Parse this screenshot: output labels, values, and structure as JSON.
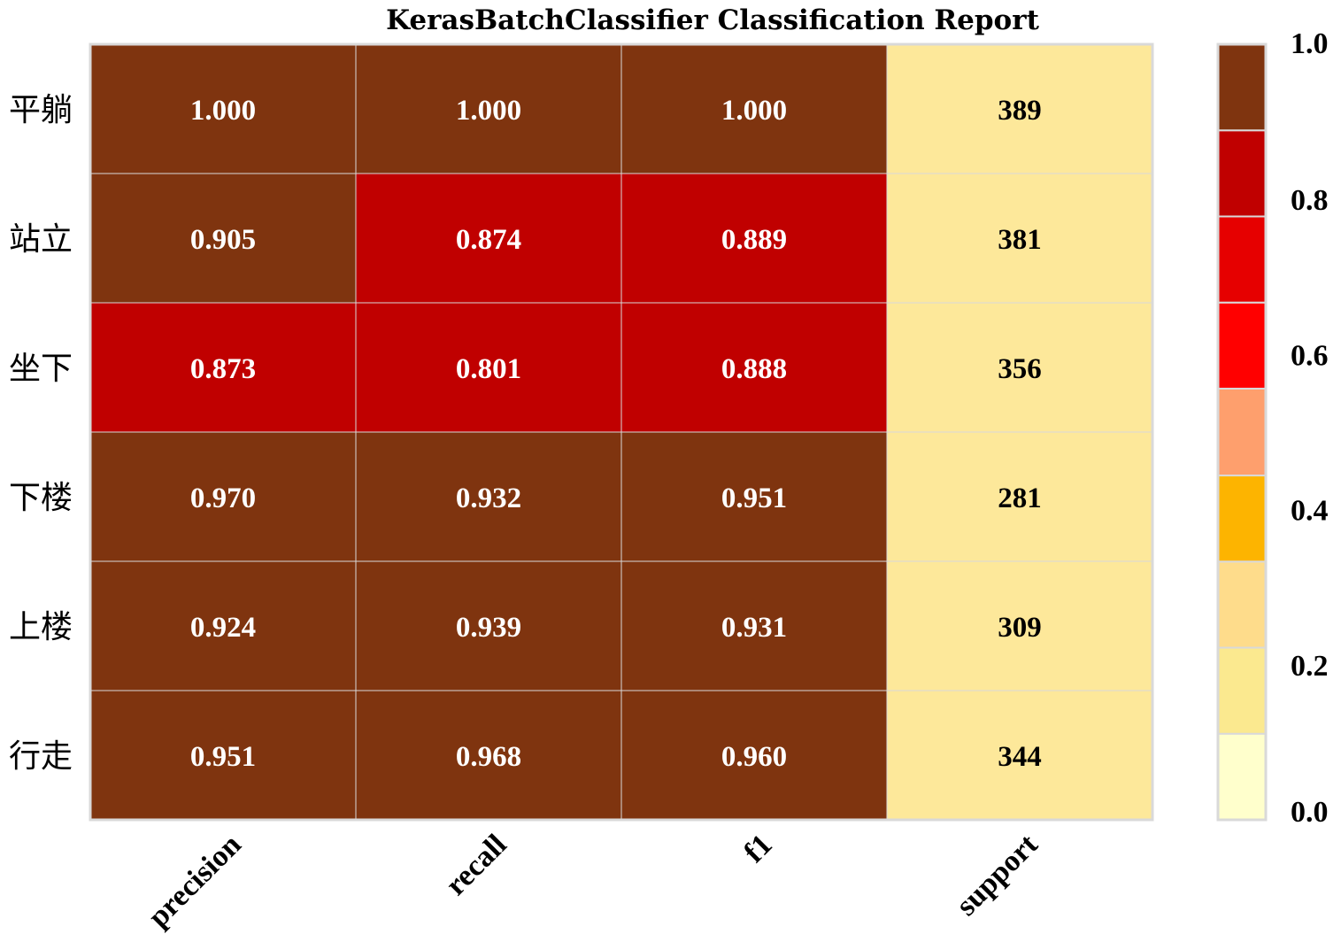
{
  "chart_data": {
    "type": "heatmap",
    "title": "KerasBatchClassifier Classification Report",
    "rows": [
      "平躺",
      "站立",
      "坐下",
      "下楼",
      "上楼",
      "行走"
    ],
    "columns": [
      "precision",
      "recall",
      "f1",
      "support"
    ],
    "values": [
      [
        1.0,
        1.0,
        1.0,
        389
      ],
      [
        0.905,
        0.874,
        0.889,
        381
      ],
      [
        0.873,
        0.801,
        0.888,
        356
      ],
      [
        0.97,
        0.932,
        0.951,
        281
      ],
      [
        0.924,
        0.939,
        0.931,
        309
      ],
      [
        0.951,
        0.968,
        0.96,
        344
      ]
    ],
    "cell_labels": [
      [
        "1.000",
        "1.000",
        "1.000",
        "389"
      ],
      [
        "0.905",
        "0.874",
        "0.889",
        "381"
      ],
      [
        "0.873",
        "0.801",
        "0.888",
        "356"
      ],
      [
        "0.970",
        "0.932",
        "0.951",
        "281"
      ],
      [
        "0.924",
        "0.939",
        "0.931",
        "309"
      ],
      [
        "0.951",
        "0.968",
        "0.960",
        "344"
      ]
    ],
    "support_color_value": 0.2,
    "colorbar": {
      "range": [
        0.0,
        1.0
      ],
      "tick_values": [
        0.0,
        0.2,
        0.4,
        0.6,
        0.8,
        1.0
      ],
      "tick_labels": [
        "0.0",
        "0.2",
        "0.4",
        "0.6",
        "0.8",
        "1.0"
      ],
      "bins": [
        {
          "from": 0.0,
          "to": 0.111,
          "color": "#FFFFCC"
        },
        {
          "from": 0.111,
          "to": 0.222,
          "color": "#FBE98F"
        },
        {
          "from": 0.222,
          "to": 0.333,
          "color": "#FEDC8B"
        },
        {
          "from": 0.333,
          "to": 0.444,
          "color": "#FDB400"
        },
        {
          "from": 0.444,
          "to": 0.556,
          "color": "#FE9F6D"
        },
        {
          "from": 0.556,
          "to": 0.667,
          "color": "#FF0000"
        },
        {
          "from": 0.667,
          "to": 0.778,
          "color": "#E60000"
        },
        {
          "from": 0.778,
          "to": 0.889,
          "color": "#C00000"
        },
        {
          "from": 0.889,
          "to": 1.0,
          "color": "#7F340F"
        }
      ]
    },
    "support_cell_color": "#FDE89A",
    "text_colors": {
      "dark": "#FFFFFF",
      "light": "#000000"
    },
    "grid_color": "#D9D9D9"
  }
}
